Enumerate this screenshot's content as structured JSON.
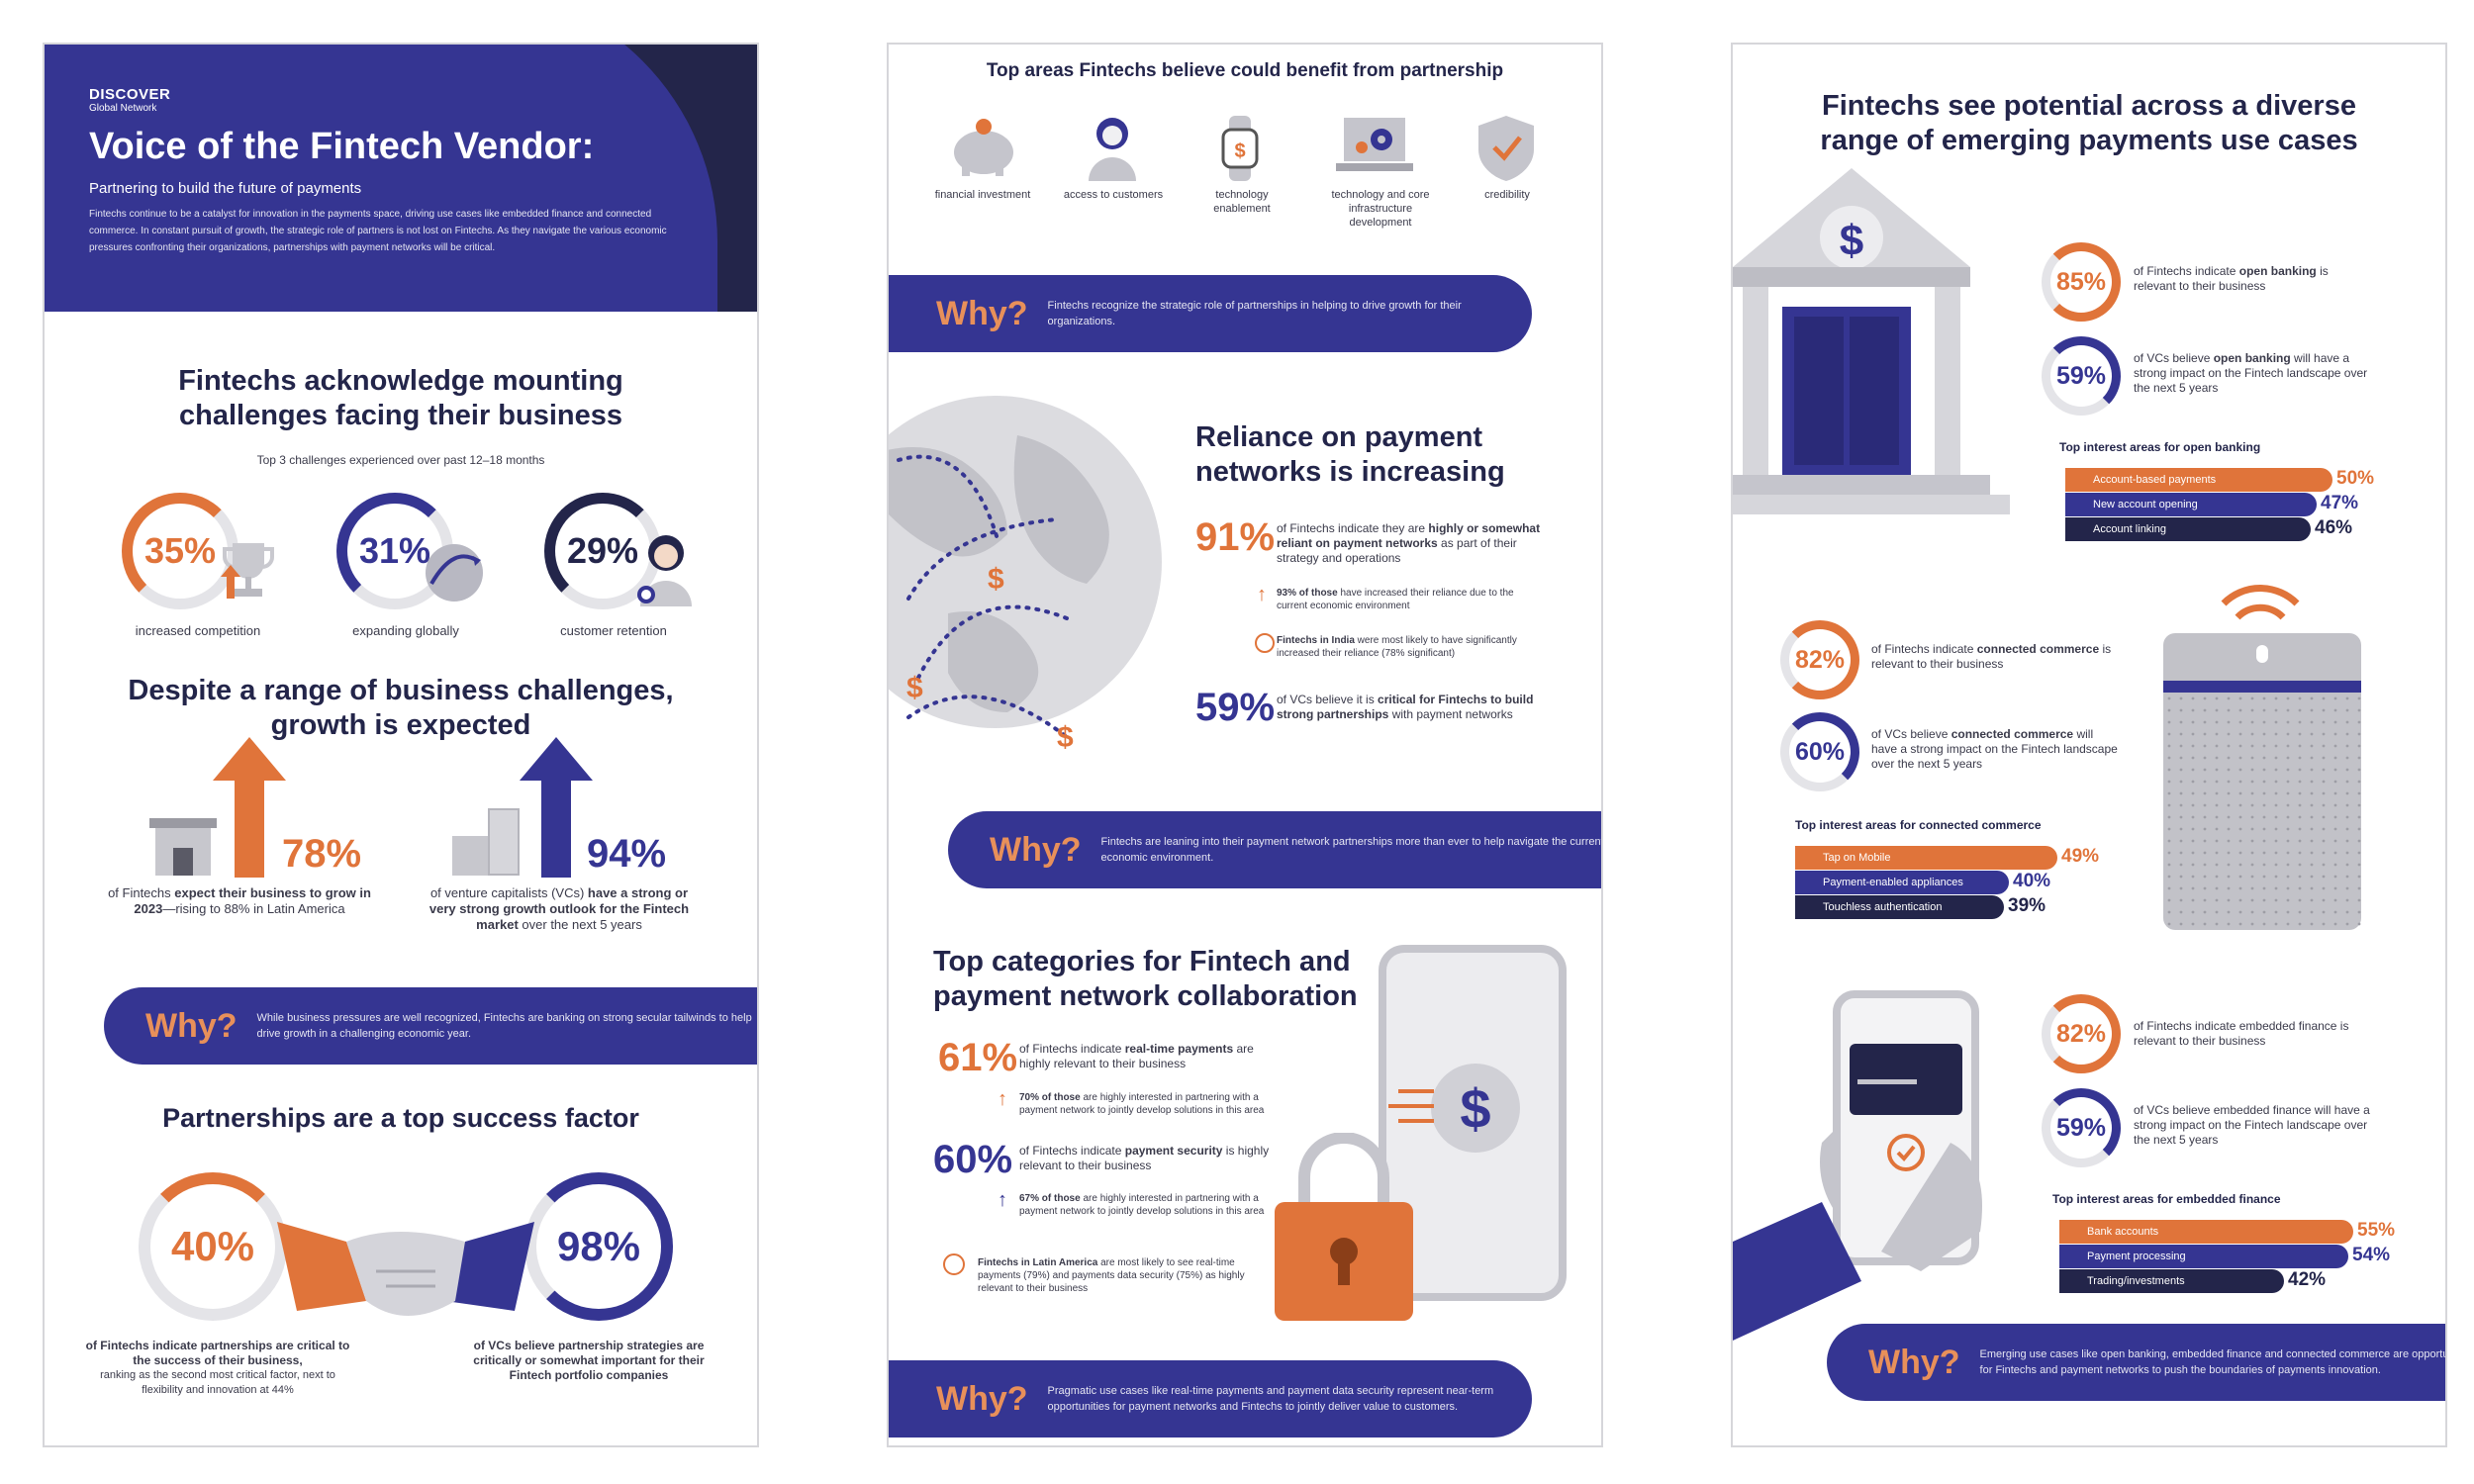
{
  "colors": {
    "navy": "#353592",
    "orange": "#e0743a",
    "dark": "#23254a",
    "grey": "#cfcfd4"
  },
  "p1": {
    "brand": "DISCOVER",
    "brand_sub": "Global Network",
    "title": "Voice of the Fintech Vendor:",
    "subtitle": "Partnering to build the future of payments",
    "intro": "Fintechs continue to be a catalyst for innovation in the payments space, driving use cases like embedded finance and connected commerce. In constant pursuit of growth, the strategic role of partners is not lost on Fintechs. As they navigate the various economic pressures confronting their organizations, partnerships with payment networks will be critical.",
    "challenges_title": "Fintechs acknowledge mounting challenges facing their business",
    "challenges_sub": "Top 3 challenges experienced over past 12–18 months",
    "challenges": [
      {
        "value": "35%",
        "label": "increased competition",
        "fraction": 0.35
      },
      {
        "value": "31%",
        "label": "expanding globally",
        "fraction": 0.31
      },
      {
        "value": "29%",
        "label": "customer retention",
        "fraction": 0.29
      }
    ],
    "growth_title": "Despite a range of business challenges, growth is expected",
    "growth_left_value": "78%",
    "growth_left_pre": "of Fintechs ",
    "growth_left_bold": "expect their business to grow in 2023",
    "growth_left_post": "—rising to 88% in Latin America",
    "growth_right_value": "94%",
    "growth_right_pre": "of venture capitalists (VCs) ",
    "growth_right_bold": "have a strong or very strong growth outlook for the Fintech market",
    "growth_right_post": " over the next 5 years",
    "why_word": "Why?",
    "why1": "While business pressures are well recognized, Fintechs are banking on strong secular tailwinds to help drive growth in a challenging economic year.",
    "partner_title": "Partnerships are a top success factor",
    "partner_left_value": "40%",
    "partner_left_bold": "of Fintechs indicate partnerships are critical to the success of their business,",
    "partner_left_rest": "ranking as the second most critical factor, next to flexibility and innovation at 44%",
    "partner_right_value": "98%",
    "partner_right_bold": "of VCs believe partnership strategies are critically or somewhat important for their Fintech portfolio companies"
  },
  "p2": {
    "areas_title": "Top areas Fintechs believe could benefit from partnership",
    "areas": [
      "financial investment",
      "access to customers",
      "technology enablement",
      "technology and core infrastructure development",
      "credibility"
    ],
    "why_word": "Why?",
    "why1": "Fintechs recognize the strategic role of partnerships in helping to drive growth for their organizations.",
    "reliance_title": "Reliance on payment networks is increasing",
    "reliance_value": "91%",
    "reliance_pre": "of Fintechs indicate they are ",
    "reliance_bold": "highly or somewhat reliant on payment networks",
    "reliance_post": " as part of their strategy and operations",
    "reliance_sub1_bold": "93% of those",
    "reliance_sub1": " have increased their reliance due to the current economic environment",
    "reliance_sub2_bold": "Fintechs in India",
    "reliance_sub2": " were most likely to have significantly increased their reliance (78% significant)",
    "vc_value": "59%",
    "vc_pre": "of VCs believe it is ",
    "vc_bold": "critical for Fintechs to build strong partnerships",
    "vc_post": " with payment networks",
    "why2": "Fintechs are leaning into their payment network partnerships more than ever to help navigate the current economic environment.",
    "collab_title": "Top categories for Fintech and payment network collaboration",
    "rt_value": "61%",
    "rt_pre": "of Fintechs indicate ",
    "rt_bold": "real-time payments",
    "rt_post": " are highly relevant to their business",
    "rt_sub_bold": "70% of those",
    "rt_sub": " are highly interested in partnering with a payment network to jointly develop solutions in this area",
    "ps_value": "60%",
    "ps_pre": "of Fintechs indicate ",
    "ps_bold": "payment security",
    "ps_post": " is highly relevant to their business",
    "ps_sub_bold": "67% of those",
    "ps_sub": " are highly interested in partnering with a payment network to jointly develop solutions in this area",
    "latam_bold": "Fintechs in Latin America",
    "latam": " are most likely to see real-time payments (79%) and payments data security (75%) as highly relevant to their business",
    "why3": "Pragmatic use cases like real-time payments and payment data security represent near-term opportunities for payment networks and Fintechs to jointly deliver value to customers."
  },
  "p3": {
    "title": "Fintechs see potential across a diverse range of emerging payments use cases",
    "ob_f_value": "85%",
    "ob_f_pre": "of Fintechs indicate ",
    "ob_f_bold": "open banking",
    "ob_f_post": " is relevant to their business",
    "ob_v_value": "59%",
    "ob_v_pre": "of VCs believe ",
    "ob_v_bold": "open banking",
    "ob_v_post": " will have a strong impact on the Fintech landscape over the next 5 years",
    "ob_head": "Top interest areas for open banking",
    "ob_bars": [
      {
        "label": "Account-based payments",
        "value": "50%",
        "pct": 50
      },
      {
        "label": "New account opening",
        "value": "47%",
        "pct": 47
      },
      {
        "label": "Account linking",
        "value": "46%",
        "pct": 46
      }
    ],
    "cc_f_value": "82%",
    "cc_f_pre": "of Fintechs indicate ",
    "cc_f_bold": "connected commerce",
    "cc_f_post": " is relevant to their business",
    "cc_v_value": "60%",
    "cc_v_pre": "of VCs believe ",
    "cc_v_bold": "connected commerce",
    "cc_v_post": " will have a strong impact on the Fintech landscape over the next 5 years",
    "cc_head": "Top interest areas for connected commerce",
    "cc_bars": [
      {
        "label": "Tap on Mobile",
        "value": "49%",
        "pct": 49
      },
      {
        "label": "Payment-enabled appliances",
        "value": "40%",
        "pct": 40
      },
      {
        "label": "Touchless authentication",
        "value": "39%",
        "pct": 39
      }
    ],
    "ef_f_value": "82%",
    "ef_f_text": "of Fintechs indicate embedded finance is relevant to their business",
    "ef_v_value": "59%",
    "ef_v_text": "of VCs believe embedded finance will have a strong impact on the Fintech landscape over the next 5 years",
    "ef_head": "Top interest areas for embedded finance",
    "ef_bars": [
      {
        "label": "Bank accounts",
        "value": "55%",
        "pct": 55
      },
      {
        "label": "Payment processing",
        "value": "54%",
        "pct": 54
      },
      {
        "label": "Trading/investments",
        "value": "42%",
        "pct": 42
      }
    ],
    "why_word": "Why?",
    "why": "Emerging use cases like open banking, embedded finance and connected commerce are opportunities for Fintechs and payment networks to push the boundaries of payments innovation."
  }
}
